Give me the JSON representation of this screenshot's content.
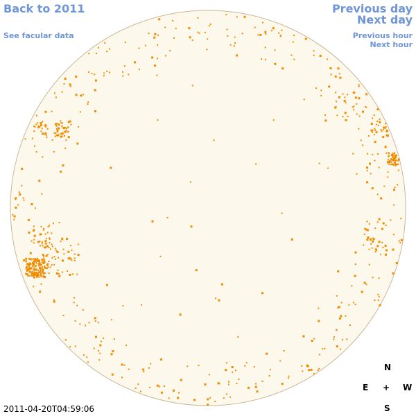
{
  "nav": {
    "back_to_year": "Back to 2011",
    "see_facular": "See facular data",
    "previous_day": "Previous day",
    "next_day": "Next day",
    "previous_hour": "Previous hour",
    "next_hour": "Next hour"
  },
  "compass": {
    "north": "N",
    "south": "S",
    "east": "E",
    "west": "W",
    "center": "+"
  },
  "timestamp": "2011-04-20T04:59:06",
  "colors": {
    "link": "#6f95d9",
    "disk_fill": "#fdf8ec",
    "disk_edge": "#c9b79a",
    "facula": "#f08c00"
  },
  "icons": {
    "solar_disk": "sun-disk"
  }
}
